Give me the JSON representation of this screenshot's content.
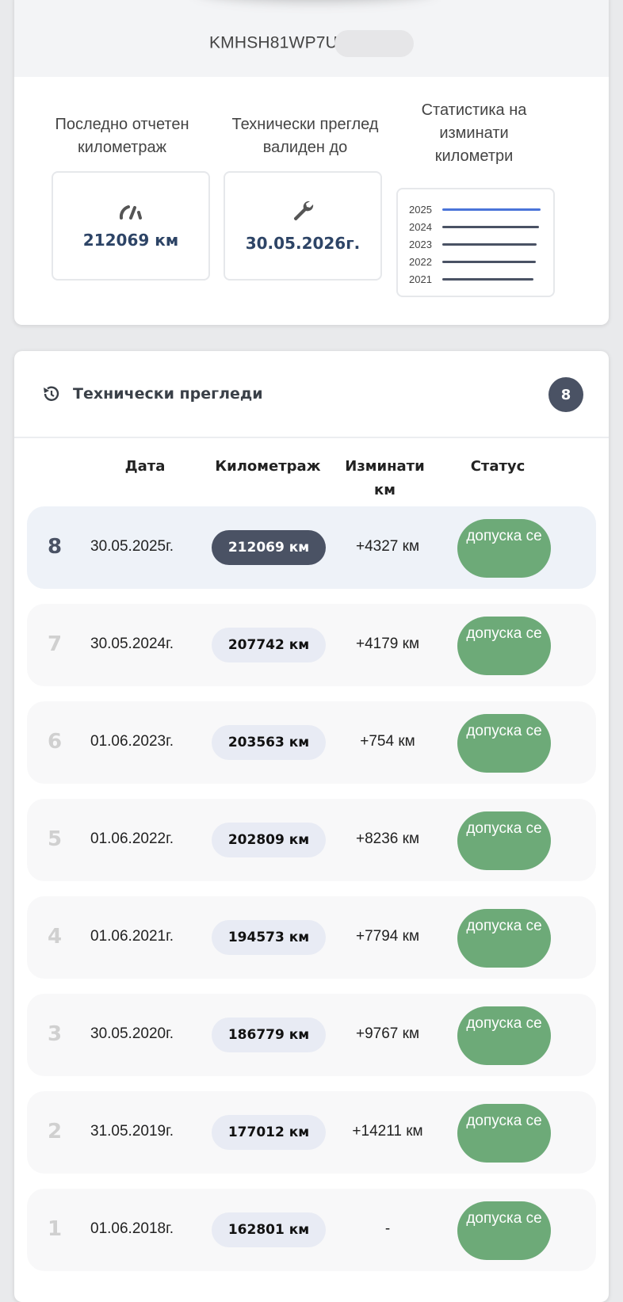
{
  "vehicle": {
    "vin_visible": "KMHSH81WP7U"
  },
  "stats": {
    "mileage": {
      "label": "Последно отчетен километраж",
      "value": "212069 км",
      "icon": "speedometer-icon"
    },
    "inspection": {
      "label": "Технически преглед валиден до",
      "value": "30.05.2026г.",
      "icon": "wrench-icon"
    },
    "chart": {
      "label": "Статистика на изминати километри",
      "rows": [
        {
          "year": "2025",
          "level": 1.0,
          "color": "#4a74d9"
        },
        {
          "year": "2024",
          "level": 0.98,
          "color": "#4a5264"
        },
        {
          "year": "2023",
          "level": 0.96,
          "color": "#4a5264"
        },
        {
          "year": "2022",
          "level": 0.955,
          "color": "#4a5264"
        },
        {
          "year": "2021",
          "level": 0.93,
          "color": "#4a5264"
        }
      ]
    }
  },
  "inspections": {
    "title": "Технически прегледи",
    "count": "8",
    "icon": "history-icon",
    "columns": {
      "date": "Дата",
      "mileage": "Километраж",
      "diff": "Изминати км",
      "status": "Статус"
    },
    "rows": [
      {
        "n": "8",
        "date": "30.05.2025г.",
        "km": "212069 км",
        "diff": "+4327 км",
        "status": "допуска се"
      },
      {
        "n": "7",
        "date": "30.05.2024г.",
        "km": "207742 км",
        "diff": "+4179 км",
        "status": "допуска се"
      },
      {
        "n": "6",
        "date": "01.06.2023г.",
        "km": "203563 км",
        "diff": "+754 км",
        "status": "допуска се"
      },
      {
        "n": "5",
        "date": "01.06.2022г.",
        "km": "202809 км",
        "diff": "+8236 км",
        "status": "допуска се"
      },
      {
        "n": "4",
        "date": "01.06.2021г.",
        "km": "194573 км",
        "diff": "+7794 км",
        "status": "допуска се"
      },
      {
        "n": "3",
        "date": "30.05.2020г.",
        "km": "186779 км",
        "diff": "+9767 км",
        "status": "допуска се"
      },
      {
        "n": "2",
        "date": "31.05.2019г.",
        "km": "177012 км",
        "diff": "+14211 км",
        "status": "допуска се"
      },
      {
        "n": "1",
        "date": "01.06.2018г.",
        "km": "162801 км",
        "diff": "-",
        "status": "допуска се"
      }
    ]
  }
}
